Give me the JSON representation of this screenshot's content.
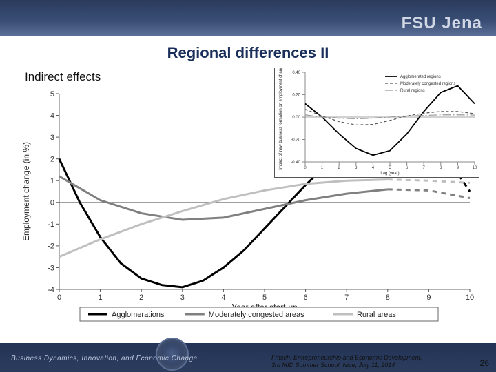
{
  "header": {
    "brand": "FSU Jena"
  },
  "title": "Regional differences II",
  "subtitle": "Indirect effects",
  "footer": {
    "left": "Business Dynamics, Innovation, and Economic Change",
    "cite_l1": "Fritsch: Entrepreneurship and Economic Development,",
    "cite_l2": "3rd MID Summer School, Nice, July 11, 2014",
    "page": "26"
  },
  "main_chart": {
    "type": "line",
    "xlabel": "Year after start-up",
    "ylabel": "Employment change (in %)",
    "xlim": [
      0,
      10
    ],
    "ylim": [
      -4,
      5
    ],
    "xtick_step": 1,
    "ytick_step": 1,
    "xtick_labels": [
      "0",
      "1",
      "2",
      "3",
      "4",
      "5",
      "6",
      "7",
      "8",
      "9",
      "10"
    ],
    "ytick_labels": [
      "-4",
      "-3",
      "-2",
      "-1",
      "0",
      "1",
      "2",
      "3",
      "4",
      "5"
    ],
    "axis_color": "#666",
    "tick_color": "#555",
    "grid": false,
    "background": "#ffffff",
    "label_fontsize": 12,
    "tick_fontsize": 11,
    "legend": {
      "items": [
        {
          "label": "Agglomerations",
          "color": "#000000",
          "width": 3
        },
        {
          "label": "Moderately congested areas",
          "color": "#808080",
          "width": 3
        },
        {
          "label": "Rural areas",
          "color": "#bfbfbf",
          "width": 3
        }
      ],
      "border_color": "#666",
      "fontsize": 11
    },
    "series": [
      {
        "name": "agglom",
        "color": "#000000",
        "width": 3,
        "solid_until": 8,
        "x": [
          0,
          0.5,
          1,
          1.5,
          2,
          2.5,
          3,
          3.5,
          4,
          4.5,
          5,
          5.5,
          6,
          6.5,
          7,
          7.5,
          8,
          8.5,
          9,
          9.5,
          10
        ],
        "y": [
          2.0,
          0.0,
          -1.6,
          -2.8,
          -3.5,
          -3.8,
          -3.9,
          -3.6,
          -3.0,
          -2.2,
          -1.2,
          -0.2,
          0.8,
          1.7,
          2.4,
          3.0,
          3.3,
          3.3,
          2.9,
          1.9,
          0.5
        ]
      },
      {
        "name": "moderate",
        "color": "#808080",
        "width": 3,
        "solid_until": 8,
        "x": [
          0,
          1,
          2,
          3,
          4,
          5,
          6,
          7,
          8,
          9,
          10
        ],
        "y": [
          1.2,
          0.1,
          -0.5,
          -0.8,
          -0.7,
          -0.3,
          0.1,
          0.4,
          0.6,
          0.55,
          0.2
        ]
      },
      {
        "name": "rural",
        "color": "#bfbfbf",
        "width": 3,
        "solid_until": 8,
        "x": [
          0,
          1,
          2,
          3,
          4,
          5,
          6,
          7,
          8,
          9,
          10
        ],
        "y": [
          -2.5,
          -1.7,
          -1.0,
          -0.4,
          0.15,
          0.55,
          0.85,
          1.0,
          1.05,
          1.0,
          0.9
        ]
      }
    ]
  },
  "inset_chart": {
    "type": "line",
    "xlabel": "Lag (year)",
    "ylabel": "Impact of new business formation on employment change",
    "xlim": [
      0,
      10
    ],
    "ylim": [
      -0.4,
      0.4
    ],
    "xtick_step": 1,
    "ytick_step": 0.2,
    "xtick_labels": [
      "0",
      "1",
      "2",
      "3",
      "4",
      "5",
      "6",
      "7",
      "8",
      "9",
      "10"
    ],
    "ytick_labels": [
      "-0.40",
      "-0.20",
      "0.00",
      "0.20",
      "0.40"
    ],
    "axis_color": "#888",
    "tick_color": "#888",
    "label_fontsize": 6,
    "tick_fontsize": 6,
    "legend": {
      "items": [
        {
          "label": "Agglomerated regions",
          "color": "#000000",
          "width": 1.8,
          "dash": ""
        },
        {
          "label": "Moderately congested regions",
          "color": "#555555",
          "width": 1.2,
          "dash": "4 3"
        },
        {
          "label": "Rural regions",
          "color": "#999999",
          "width": 1.2,
          "dash": "12 3 2 3"
        }
      ],
      "fontsize": 6
    },
    "series": [
      {
        "name": "agglom",
        "color": "#000000",
        "width": 1.8,
        "dash": "",
        "x": [
          0,
          1,
          2,
          3,
          4,
          5,
          6,
          7,
          8,
          9,
          10
        ],
        "y": [
          0.12,
          0.0,
          -0.15,
          -0.28,
          -0.34,
          -0.3,
          -0.15,
          0.05,
          0.22,
          0.28,
          0.12
        ]
      },
      {
        "name": "moderate",
        "color": "#555555",
        "width": 1.2,
        "dash": "4 3",
        "x": [
          0,
          1,
          2,
          3,
          4,
          5,
          6,
          7,
          8,
          9,
          10
        ],
        "y": [
          0.07,
          0.01,
          -0.04,
          -0.07,
          -0.065,
          -0.03,
          0.01,
          0.035,
          0.05,
          0.05,
          0.03
        ]
      },
      {
        "name": "rural",
        "color": "#999999",
        "width": 1.2,
        "dash": "12 3 2 3",
        "x": [
          0,
          1,
          2,
          3,
          4,
          5,
          6,
          7,
          8,
          9,
          10
        ],
        "y": [
          0.02,
          0.0,
          -0.01,
          -0.015,
          -0.01,
          0.0,
          0.01,
          0.015,
          0.02,
          0.02,
          0.018
        ]
      }
    ]
  }
}
